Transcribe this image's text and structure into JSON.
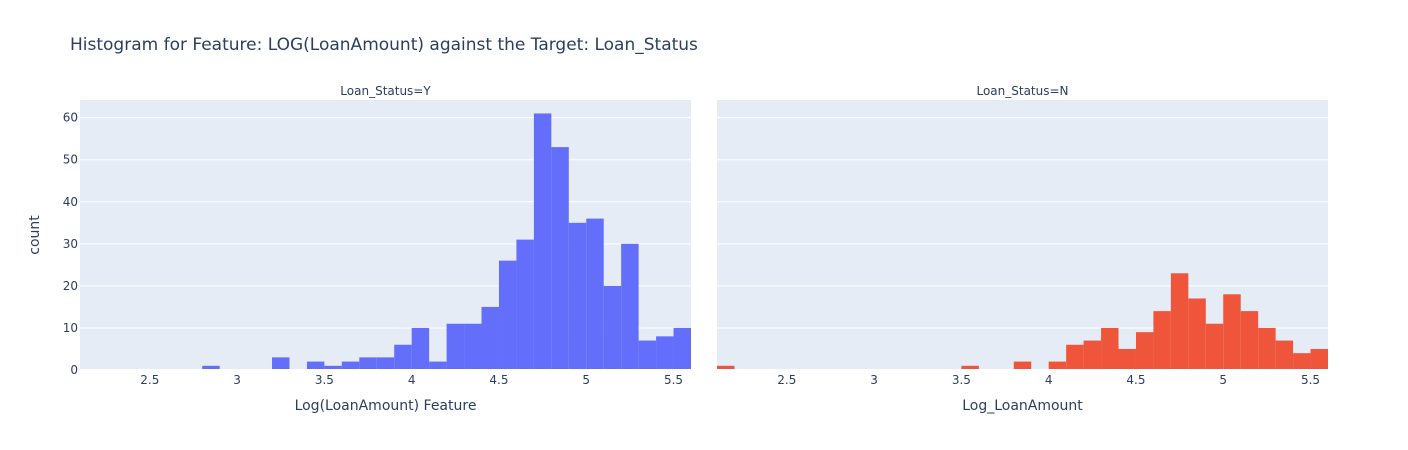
{
  "chart_data": {
    "type": "bar",
    "title": "Histogram for Feature: LOG(LoanAmount) against the Target: Loan_Status",
    "ylabel": "count",
    "ylim": [
      0,
      64.2
    ],
    "yticks": [
      0,
      10,
      20,
      30,
      40,
      50,
      60
    ],
    "xlim": [
      2.1,
      5.6
    ],
    "xticks": [
      2.5,
      3,
      3.5,
      4,
      4.5,
      5,
      5.5
    ],
    "xtick_labels": [
      "2.5",
      "3",
      "3.5",
      "4",
      "4.5",
      "5",
      "5.5"
    ],
    "bin_width": 0.1,
    "grid": true,
    "panels": [
      {
        "facet_label": "Loan_Status=Y",
        "xlabel": "Log(LoanAmount) Feature",
        "color": "#636efa",
        "bin_starts": [
          2.8,
          3.2,
          3.4,
          3.5,
          3.6,
          3.7,
          3.8,
          3.9,
          4.0,
          4.1,
          4.2,
          4.3,
          4.4,
          4.5,
          4.6,
          4.7,
          4.8,
          4.9,
          5.0,
          5.1,
          5.2,
          5.3,
          5.4,
          5.5
        ],
        "values": [
          1,
          3,
          2,
          1,
          2,
          3,
          3,
          6,
          10,
          2,
          11,
          11,
          15,
          26,
          31,
          61,
          53,
          35,
          36,
          20,
          30,
          7,
          8,
          10
        ]
      },
      {
        "facet_label": "Loan_Status=N",
        "xlabel": "Log_LoanAmount",
        "color": "#ef553b",
        "bin_starts": [
          2.1,
          3.5,
          3.8,
          4.0,
          4.1,
          4.2,
          4.3,
          4.4,
          4.5,
          4.6,
          4.7,
          4.8,
          4.9,
          5.0,
          5.1,
          5.2,
          5.3,
          5.4,
          5.5
        ],
        "values": [
          1,
          1,
          2,
          2,
          6,
          7,
          10,
          5,
          9,
          14,
          23,
          17,
          11,
          18,
          14,
          10,
          7,
          4,
          5
        ]
      }
    ]
  }
}
